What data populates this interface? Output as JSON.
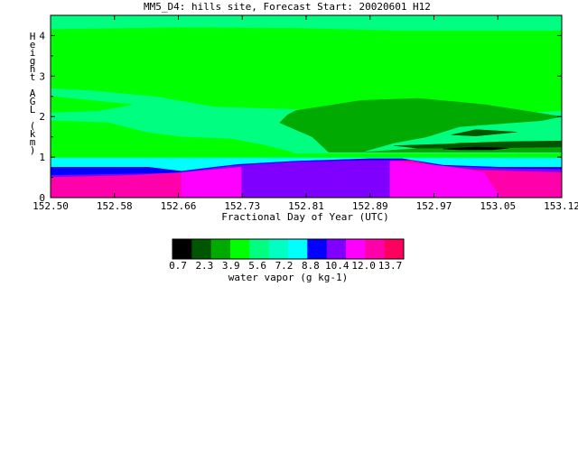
{
  "chart_data": {
    "type": "heatmap",
    "title": "MM5_D4: hills site,  Forecast Start: 20020601 H12",
    "xlabel": "Fractional Day of Year (UTC)",
    "ylabel": "Height AGL (km)",
    "xlim": [
      152.5,
      153.125
    ],
    "ylim": [
      0,
      4.5
    ],
    "x_ticks": [
      "152.50",
      "152.58",
      "152.66",
      "152.73",
      "152.81",
      "152.89",
      "152.97",
      "153.05",
      "153.12"
    ],
    "y_ticks": [
      "0",
      "1",
      "2",
      "3",
      "4"
    ],
    "grid": false,
    "colorbar": {
      "label": "water vapor (g kg-1)",
      "tick_labels": [
        "0.7",
        "2.3",
        "3.9",
        "5.6",
        "7.2",
        "8.8",
        "10.4",
        "12.0",
        "13.7"
      ],
      "colors": [
        "#000000",
        "#005500",
        "#00aa00",
        "#00ff00",
        "#00ff80",
        "#00ffc0",
        "#00ffff",
        "#0000ff",
        "#8000ff",
        "#ff00ff",
        "#ff00aa",
        "#ff0060"
      ]
    },
    "regions": [
      {
        "level": "5.6-7.2",
        "color": "#00ff80",
        "polygon": [
          [
            152.5,
            0.7
          ],
          [
            153.125,
            0.7
          ],
          [
            153.125,
            4.5
          ],
          [
            152.5,
            4.5
          ]
        ]
      },
      {
        "level": "3.9-5.6",
        "color": "#00ff00",
        "polygon": [
          [
            152.5,
            4.15
          ],
          [
            152.66,
            4.2
          ],
          [
            152.8,
            4.18
          ],
          [
            152.92,
            4.12
          ],
          [
            153.125,
            4.12
          ],
          [
            153.125,
            2.15
          ],
          [
            153.0,
            2.0
          ],
          [
            152.9,
            2.1
          ],
          [
            152.78,
            2.2
          ],
          [
            152.7,
            2.25
          ],
          [
            152.63,
            2.5
          ],
          [
            152.55,
            2.65
          ],
          [
            152.5,
            2.7
          ],
          [
            152.5,
            1.9
          ],
          [
            152.57,
            1.85
          ],
          [
            152.62,
            1.6
          ],
          [
            152.66,
            1.5
          ],
          [
            152.72,
            1.45
          ],
          [
            152.76,
            1.3
          ],
          [
            152.79,
            1.15
          ],
          [
            152.8,
            1.08
          ],
          [
            152.9,
            1.08
          ],
          [
            153.125,
            1.08
          ],
          [
            153.125,
            0.95
          ],
          [
            152.5,
            0.95
          ]
        ]
      },
      {
        "level": "3.9-5.6",
        "color": "#00ff00",
        "polygon": [
          [
            152.5,
            2.5
          ],
          [
            152.55,
            2.4
          ],
          [
            152.6,
            2.3
          ],
          [
            152.56,
            2.15
          ],
          [
            152.5,
            2.1
          ]
        ]
      },
      {
        "level": "2.3-3.9",
        "color": "#00aa00",
        "polygon": [
          [
            152.8,
            2.15
          ],
          [
            152.88,
            2.4
          ],
          [
            152.95,
            2.45
          ],
          [
            153.03,
            2.3
          ],
          [
            153.125,
            2.0
          ],
          [
            153.1,
            1.9
          ],
          [
            153.0,
            1.75
          ],
          [
            152.96,
            1.5
          ],
          [
            152.92,
            1.35
          ],
          [
            152.88,
            1.12
          ],
          [
            152.84,
            1.12
          ],
          [
            152.82,
            1.5
          ],
          [
            152.78,
            1.85
          ],
          [
            152.79,
            2.05
          ]
        ]
      },
      {
        "level": "2.3-3.9",
        "color": "#00aa00",
        "polygon": [
          [
            152.88,
            1.12
          ],
          [
            152.94,
            1.2
          ],
          [
            153.0,
            1.35
          ],
          [
            153.125,
            1.35
          ],
          [
            153.125,
            1.12
          ]
        ]
      },
      {
        "level": "0.7-2.3",
        "color": "#005500",
        "polygon": [
          [
            152.99,
            1.55
          ],
          [
            153.02,
            1.68
          ],
          [
            153.07,
            1.62
          ],
          [
            153.02,
            1.52
          ]
        ]
      },
      {
        "level": "0.7-2.3",
        "color": "#005500",
        "polygon": [
          [
            152.92,
            1.28
          ],
          [
            152.98,
            1.32
          ],
          [
            153.05,
            1.38
          ],
          [
            153.125,
            1.4
          ],
          [
            153.125,
            1.25
          ],
          [
            153.0,
            1.22
          ],
          [
            152.95,
            1.22
          ]
        ]
      },
      {
        "level": "<0.7",
        "color": "#000000",
        "polygon": [
          [
            152.98,
            1.2
          ],
          [
            153.02,
            1.25
          ],
          [
            153.06,
            1.22
          ],
          [
            153.04,
            1.18
          ],
          [
            153.0,
            1.18
          ]
        ]
      },
      {
        "level": "7.2-8.8",
        "color": "#00ffff",
        "polygon": [
          [
            152.5,
            0.65
          ],
          [
            153.125,
            0.65
          ],
          [
            153.125,
            0.98
          ],
          [
            152.5,
            0.98
          ]
        ]
      },
      {
        "level": "8.8-10.4",
        "color": "#0000ff",
        "polygon": [
          [
            152.5,
            0.75
          ],
          [
            152.62,
            0.75
          ],
          [
            152.66,
            0.65
          ],
          [
            152.7,
            0.75
          ],
          [
            152.73,
            0.82
          ],
          [
            152.8,
            0.9
          ],
          [
            152.89,
            0.96
          ],
          [
            152.93,
            0.96
          ],
          [
            152.98,
            0.8
          ],
          [
            153.05,
            0.75
          ],
          [
            153.125,
            0.75
          ],
          [
            153.125,
            0.45
          ],
          [
            152.5,
            0.45
          ]
        ]
      },
      {
        "level": "10.4-12.0",
        "color": "#8000ff",
        "polygon": [
          [
            152.5,
            0.55
          ],
          [
            152.65,
            0.6
          ],
          [
            152.72,
            0.78
          ],
          [
            152.8,
            0.88
          ],
          [
            152.89,
            0.92
          ],
          [
            152.93,
            0.92
          ],
          [
            152.98,
            0.78
          ],
          [
            153.05,
            0.72
          ],
          [
            153.125,
            0.7
          ],
          [
            153.125,
            0
          ],
          [
            152.5,
            0
          ]
        ]
      },
      {
        "level": "12.0-13.7",
        "color": "#ff00aa",
        "polygon": [
          [
            152.5,
            0.5
          ],
          [
            152.6,
            0.55
          ],
          [
            152.66,
            0.62
          ],
          [
            152.733,
            0.75
          ],
          [
            152.733,
            0
          ],
          [
            152.5,
            0
          ]
        ]
      },
      {
        "level": "12.0-13.7",
        "color": "#ff00aa",
        "polygon": [
          [
            152.915,
            0.9
          ],
          [
            152.94,
            0.92
          ],
          [
            152.97,
            0.8
          ],
          [
            153.02,
            0.68
          ],
          [
            153.125,
            0.62
          ],
          [
            153.125,
            0
          ],
          [
            152.915,
            0
          ]
        ]
      },
      {
        "level": "12.0-13.7",
        "color": "#ff00ff",
        "polygon": [
          [
            152.66,
            0.62
          ],
          [
            152.733,
            0.75
          ],
          [
            152.733,
            0
          ],
          [
            152.66,
            0
          ]
        ]
      },
      {
        "level": "12.0-13.7",
        "color": "#ff00ff",
        "polygon": [
          [
            152.915,
            0.9
          ],
          [
            152.98,
            0.78
          ],
          [
            153.03,
            0.62
          ],
          [
            153.05,
            0
          ],
          [
            152.915,
            0
          ]
        ]
      }
    ]
  }
}
